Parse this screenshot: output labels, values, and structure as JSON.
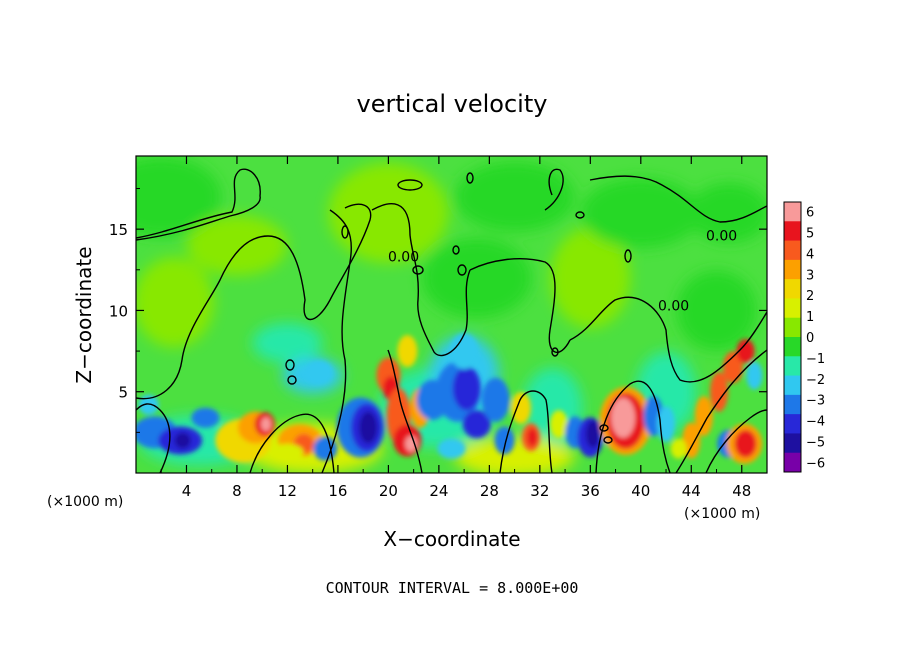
{
  "chart_data": {
    "type": "heatmap",
    "title": "vertical velocity",
    "xlabel": "X−coordinate",
    "ylabel": "Z−coordinate",
    "x_unit_label": "(×1000 m)",
    "z_unit_label": "(×1000 m)",
    "x_range": [
      0,
      50
    ],
    "z_range": [
      0,
      19.5
    ],
    "x_ticks": [
      4,
      8,
      12,
      16,
      20,
      24,
      28,
      32,
      36,
      40,
      44,
      48
    ],
    "z_ticks": [
      5,
      10,
      15
    ],
    "colorbar": {
      "ticks": [
        "6",
        "5",
        "4",
        "3",
        "2",
        "1",
        "0",
        "−1",
        "−2",
        "−3",
        "−4",
        "−5",
        "−6"
      ],
      "colors": [
        "#f89a9a",
        "#e8141e",
        "#f85a1e",
        "#fca000",
        "#f0d800",
        "#d8f000",
        "#88e800",
        "#28d828",
        "#28e8a8",
        "#30c8f0",
        "#1e78e8",
        "#2828d8",
        "#1e10a0",
        "#7800a8"
      ]
    },
    "contour_labels": [
      {
        "text": "0.00",
        "x": 21.2,
        "z": 13.0
      },
      {
        "text": "0.00",
        "x": 46.4,
        "z": 14.3
      },
      {
        "text": "0.00",
        "x": 42.6,
        "z": 10.0
      }
    ],
    "contour_interval_text": "CONTOUR INTERVAL = 8.000E+00"
  }
}
